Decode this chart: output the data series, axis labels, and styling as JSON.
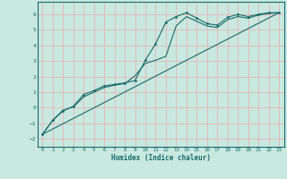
{
  "xlabel": "Humidex (Indice chaleur)",
  "ylabel": "",
  "xlim": [
    -0.5,
    23.5
  ],
  "ylim": [
    -2.5,
    6.8
  ],
  "yticks": [
    -2,
    -1,
    0,
    1,
    2,
    3,
    4,
    5,
    6
  ],
  "xticks": [
    0,
    1,
    2,
    3,
    4,
    5,
    6,
    7,
    8,
    9,
    10,
    11,
    12,
    13,
    14,
    15,
    16,
    17,
    18,
    19,
    20,
    21,
    22,
    23
  ],
  "background_color": "#c8e8e0",
  "grid_color": "#e8b4b4",
  "line_color": "#1a6b6b",
  "line1_x": [
    0,
    1,
    2,
    3,
    4,
    5,
    6,
    7,
    8,
    9,
    10,
    11,
    12,
    13,
    14,
    15,
    16,
    17,
    18,
    19,
    20,
    21,
    22,
    23
  ],
  "line1_y": [
    -1.7,
    -0.8,
    -0.2,
    0.1,
    0.85,
    1.1,
    1.4,
    1.5,
    1.6,
    1.75,
    3.05,
    4.1,
    5.5,
    5.85,
    6.1,
    5.75,
    5.4,
    5.3,
    5.8,
    6.0,
    5.85,
    6.0,
    6.1,
    6.1
  ],
  "line2_x": [
    0,
    1,
    2,
    3,
    4,
    5,
    6,
    7,
    8,
    9,
    10,
    11,
    12,
    13,
    14,
    15,
    16,
    17,
    18,
    19,
    20,
    21,
    22,
    23
  ],
  "line2_y": [
    -1.7,
    -0.8,
    -0.15,
    0.05,
    0.7,
    1.0,
    1.3,
    1.45,
    1.55,
    2.05,
    2.85,
    3.05,
    3.3,
    5.25,
    5.85,
    5.55,
    5.25,
    5.15,
    5.65,
    5.85,
    5.75,
    5.95,
    6.05,
    6.1
  ],
  "line3_x": [
    0,
    23
  ],
  "line3_y": [
    -1.7,
    6.1
  ]
}
